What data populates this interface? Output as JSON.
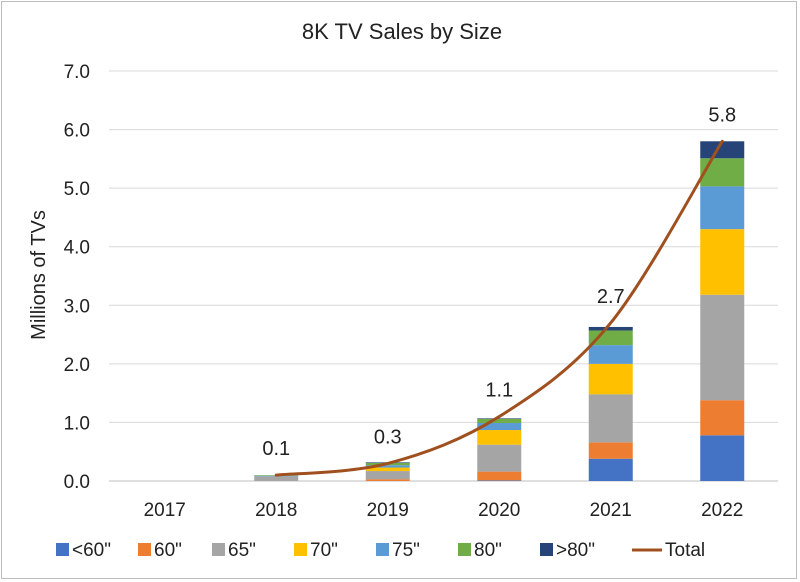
{
  "chart_data": {
    "type": "bar",
    "stacked": true,
    "title": "8K TV Sales by Size",
    "xlabel": "",
    "ylabel": "Millions of TVs",
    "ylim": [
      0,
      7
    ],
    "yticks": [
      "0.0",
      "1.0",
      "2.0",
      "3.0",
      "4.0",
      "5.0",
      "6.0",
      "7.0"
    ],
    "grid": true,
    "legend_position": "bottom",
    "categories": [
      "2017",
      "2018",
      "2019",
      "2020",
      "2021",
      "2022"
    ],
    "series": [
      {
        "name": "<60\"",
        "color": "#4472c4",
        "values": [
          0,
          0,
          0,
          0.01,
          0.38,
          0.78
        ]
      },
      {
        "name": "60\"",
        "color": "#ed7d31",
        "values": [
          0,
          0,
          0.03,
          0.15,
          0.28,
          0.6
        ]
      },
      {
        "name": "65\"",
        "color": "#a5a5a5",
        "values": [
          0,
          0.08,
          0.14,
          0.46,
          0.82,
          1.8
        ]
      },
      {
        "name": "70\"",
        "color": "#ffc000",
        "values": [
          0,
          0,
          0.06,
          0.25,
          0.52,
          1.12
        ]
      },
      {
        "name": "75\"",
        "color": "#5b9bd5",
        "values": [
          0,
          0.01,
          0.04,
          0.12,
          0.32,
          0.73
        ]
      },
      {
        "name": "80\"",
        "color": "#70ad47",
        "values": [
          0,
          0.01,
          0.04,
          0.07,
          0.25,
          0.48
        ]
      },
      {
        "name": ">80\"",
        "color": "#264478",
        "values": [
          0,
          0,
          0.01,
          0.01,
          0.06,
          0.29
        ]
      }
    ],
    "total": {
      "name": "Total",
      "color": "#a0501f",
      "type": "line",
      "values": [
        null,
        0.1,
        0.3,
        1.1,
        2.7,
        5.8
      ],
      "labels": [
        "",
        "0.1",
        "0.3",
        "1.1",
        "2.7",
        "5.8"
      ]
    }
  }
}
